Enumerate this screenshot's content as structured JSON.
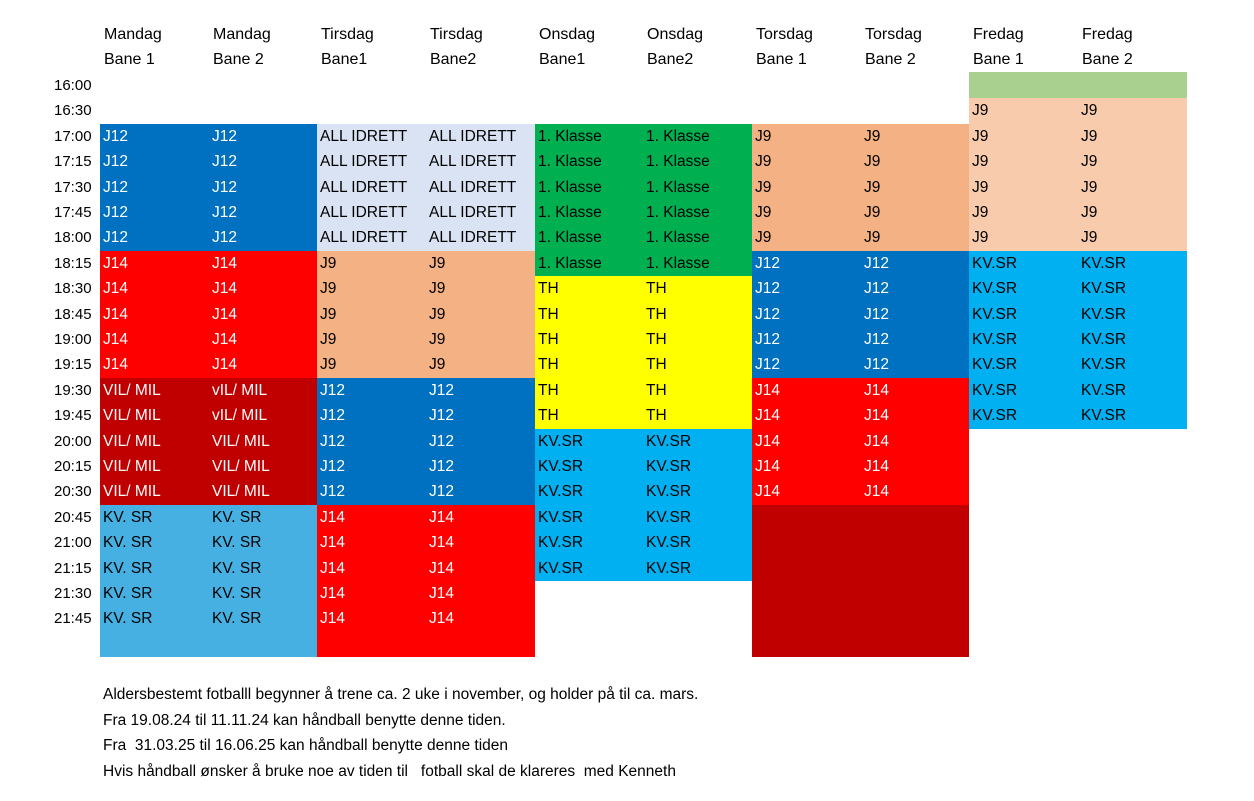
{
  "colors": {
    "green_bar": "#a9d08e",
    "peach_light": "#f8cbad",
    "peach": "#f4b183",
    "blue_dark": "#0070c0",
    "blue_light": "#00b0f0",
    "blue_sky": "#45b0e1",
    "lavender": "#dae3f3",
    "green": "#00b050",
    "yellow": "#ffff00",
    "red": "#ff0000",
    "dark_red": "#c00000"
  },
  "columns": [
    {
      "day": "Mandag",
      "court": "Bane 1"
    },
    {
      "day": "Mandag",
      "court": "Bane 2"
    },
    {
      "day": "Tirsdag",
      "court": "Bane1"
    },
    {
      "day": "Tirsdag",
      "court": "Bane2"
    },
    {
      "day": "Onsdag",
      "court": "Bane1"
    },
    {
      "day": "Onsdag",
      "court": "Bane2"
    },
    {
      "day": "Torsdag",
      "court": "Bane 1"
    },
    {
      "day": "Torsdag",
      "court": "Bane 2"
    },
    {
      "day": "Fredag",
      "court": "Bane 1"
    },
    {
      "day": "Fredag",
      "court": "Bane 2"
    }
  ],
  "times": [
    "16:00",
    "16:30",
    "17:00",
    "17:15",
    "17:30",
    "17:45",
    "18:00",
    "18:15",
    "18:30",
    "18:45",
    "19:00",
    "19:15",
    "19:30",
    "19:45",
    "20:00",
    "20:15",
    "20:30",
    "20:45",
    "21:00",
    "21:15",
    "21:30",
    "21:45"
  ],
  "blocks": [
    {
      "cols": [
        0,
        2
      ],
      "rows": [
        2,
        6
      ],
      "color": "blue_dark",
      "text_color": "#ffffff",
      "label": "J12"
    },
    {
      "cols": [
        0,
        2
      ],
      "rows": [
        7,
        11
      ],
      "color": "red",
      "text_color": "#ffffff",
      "label": "J14"
    },
    {
      "cols": [
        0,
        2
      ],
      "rows": [
        12,
        16
      ],
      "color": "dark_red",
      "text_color": "#ffffff",
      "labels": [
        "VIL/ MIL",
        "vIL/ MIL"
      ],
      "label_rows": [
        [
          "VIL/ MIL",
          "vIL/ MIL"
        ],
        [
          "VIL/ MIL",
          "vIL/ MIL"
        ],
        [
          "VIL/ MIL",
          "VIL/ MIL"
        ],
        [
          "VIL/ MIL",
          "VIL/ MIL"
        ],
        [
          "VIL/ MIL",
          "VIL/ MIL"
        ]
      ]
    },
    {
      "cols": [
        0,
        2
      ],
      "rows": [
        17,
        22
      ],
      "color": "blue_sky",
      "text_color": "#000000",
      "label": "KV. SR",
      "label_count": 5
    },
    {
      "cols": [
        2,
        4
      ],
      "rows": [
        2,
        6
      ],
      "color": "lavender",
      "text_color": "#000000",
      "label": "ALL IDRETT"
    },
    {
      "cols": [
        2,
        4
      ],
      "rows": [
        7,
        11
      ],
      "color": "peach",
      "text_color": "#000000",
      "label": "J9"
    },
    {
      "cols": [
        2,
        4
      ],
      "rows": [
        12,
        16
      ],
      "color": "blue_dark",
      "text_color": "#ffffff",
      "label": "J12"
    },
    {
      "cols": [
        2,
        4
      ],
      "rows": [
        17,
        22
      ],
      "color": "red",
      "text_color": "#ffffff",
      "label": "J14",
      "label_count": 5
    },
    {
      "cols": [
        4,
        6
      ],
      "rows": [
        2,
        7
      ],
      "color": "green",
      "text_color": "#000000",
      "label": "1. Klasse"
    },
    {
      "cols": [
        4,
        6
      ],
      "rows": [
        8,
        13
      ],
      "color": "yellow",
      "text_color": "#000000",
      "label": "TH"
    },
    {
      "cols": [
        4,
        6
      ],
      "rows": [
        14,
        19
      ],
      "color": "blue_light",
      "text_color": "#000000",
      "label": "KV.SR"
    },
    {
      "cols": [
        6,
        8
      ],
      "rows": [
        2,
        6
      ],
      "color": "peach",
      "text_color": "#000000",
      "label": "J9"
    },
    {
      "cols": [
        6,
        8
      ],
      "rows": [
        7,
        11
      ],
      "color": "blue_dark",
      "text_color": "#ffffff",
      "label": "J12"
    },
    {
      "cols": [
        6,
        8
      ],
      "rows": [
        12,
        16
      ],
      "color": "red",
      "text_color": "#ffffff",
      "label": "J14"
    },
    {
      "cols": [
        6,
        8
      ],
      "rows": [
        17,
        22
      ],
      "color": "dark_red",
      "text_color": "#ffffff",
      "label": "",
      "label_count": 0
    },
    {
      "cols": [
        8,
        10
      ],
      "rows": [
        0,
        0
      ],
      "color": "green_bar",
      "text_color": "#000000",
      "label": "",
      "label_count": 0
    },
    {
      "cols": [
        8,
        10
      ],
      "rows": [
        1,
        6
      ],
      "color": "peach_light",
      "text_color": "#000000",
      "label": "J9"
    },
    {
      "cols": [
        8,
        10
      ],
      "rows": [
        7,
        13
      ],
      "color": "blue_light",
      "text_color": "#000000",
      "label": "KV.SR"
    }
  ],
  "notes": [
    "Aldersbestemt fotballl begynner å trene ca. 2 uke i november, og holder på til ca. mars.",
    "Fra 19.08.24 til 11.11.24 kan håndball benytte denne tiden.",
    "Fra  31.03.25 til 16.06.25 kan håndball benytte denne tiden",
    "Hvis håndball ønsker å bruke noe av tiden til   fotball skal de klareres  med Kenneth"
  ]
}
